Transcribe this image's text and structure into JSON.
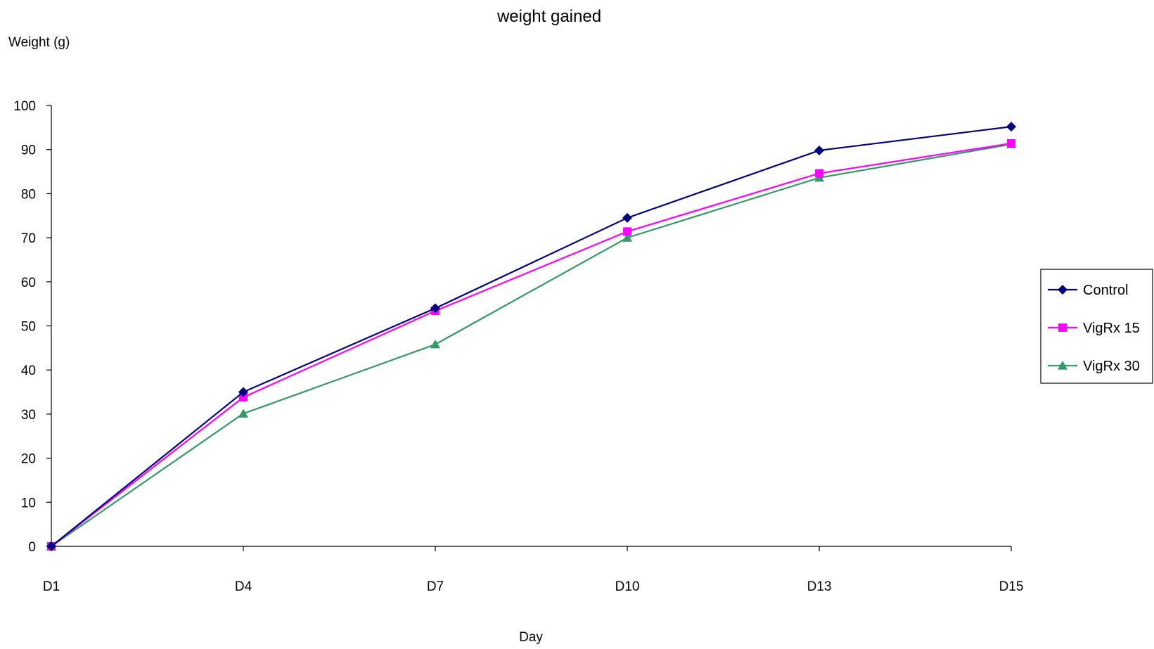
{
  "chart_data": {
    "type": "line",
    "title": "weight gained",
    "ylabel": "Weight (g)",
    "xlabel": "Day",
    "categories": [
      "D1",
      "D4",
      "D7",
      "D10",
      "D13",
      "D15"
    ],
    "ylim": [
      0,
      100
    ],
    "yticks": [
      0,
      10,
      20,
      30,
      40,
      50,
      60,
      70,
      80,
      90,
      100
    ],
    "grid": false,
    "legend_position": "right",
    "series": [
      {
        "name": "Control",
        "marker": "diamond",
        "color": "#000080",
        "values": [
          0,
          35,
          54,
          74.5,
          89.8,
          95.2
        ]
      },
      {
        "name": "VigRx 15",
        "marker": "square",
        "color": "#FF00FF",
        "values": [
          0,
          33.8,
          53.4,
          71.4,
          84.6,
          91.4
        ]
      },
      {
        "name": "VigRx 30",
        "marker": "triangle",
        "color": "#339966",
        "values": [
          0,
          30.1,
          45.8,
          70,
          83.6,
          91.2
        ]
      }
    ]
  }
}
